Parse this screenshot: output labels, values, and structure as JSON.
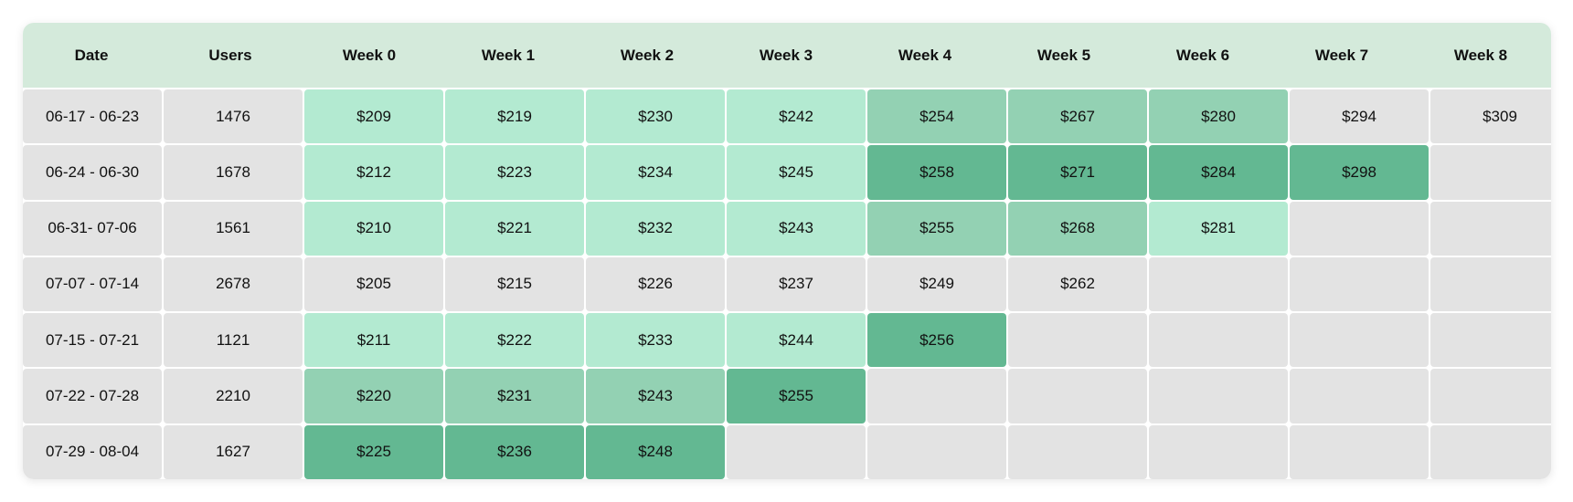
{
  "table": {
    "headers": [
      "Date",
      "Users",
      "Week 0",
      "Week 1",
      "Week 2",
      "Week 3",
      "Week 4",
      "Week 5",
      "Week 6",
      "Week 7",
      "Week 8"
    ],
    "rows": [
      {
        "date": "06-17 - 06-23",
        "users": "1476",
        "values": [
          "$209",
          "$219",
          "$230",
          "$242",
          "$254",
          "$267",
          "$280",
          "$294",
          "$309"
        ],
        "levels": [
          1,
          1,
          1,
          1,
          2,
          2,
          2,
          0,
          0
        ]
      },
      {
        "date": "06-24 - 06-30",
        "users": "1678",
        "values": [
          "$212",
          "$223",
          "$234",
          "$245",
          "$258",
          "$271",
          "$284",
          "$298",
          ""
        ],
        "levels": [
          1,
          1,
          1,
          1,
          3,
          3,
          3,
          3,
          0
        ]
      },
      {
        "date": "06-31- 07-06",
        "users": "1561",
        "values": [
          "$210",
          "$221",
          "$232",
          "$243",
          "$255",
          "$268",
          "$281",
          "",
          ""
        ],
        "levels": [
          1,
          1,
          1,
          1,
          2,
          2,
          1,
          0,
          0
        ]
      },
      {
        "date": "07-07 - 07-14",
        "users": "2678",
        "values": [
          "$205",
          "$215",
          "$226",
          "$237",
          "$249",
          "$262",
          "",
          "",
          ""
        ],
        "levels": [
          0,
          0,
          0,
          0,
          0,
          0,
          0,
          0,
          0
        ]
      },
      {
        "date": "07-15 - 07-21",
        "users": "1121",
        "values": [
          "$211",
          "$222",
          "$233",
          "$244",
          "$256",
          "",
          "",
          "",
          ""
        ],
        "levels": [
          1,
          1,
          1,
          1,
          3,
          0,
          0,
          0,
          0
        ]
      },
      {
        "date": "07-22 - 07-28",
        "users": "2210",
        "values": [
          "$220",
          "$231",
          "$243",
          "$255",
          "",
          "",
          "",
          "",
          ""
        ],
        "levels": [
          2,
          2,
          2,
          3,
          0,
          0,
          0,
          0,
          0
        ]
      },
      {
        "date": "07-29 - 08-04",
        "users": "1627",
        "values": [
          "$225",
          "$236",
          "$248",
          "",
          "",
          "",
          "",
          "",
          ""
        ],
        "levels": [
          3,
          3,
          3,
          0,
          0,
          0,
          0,
          0,
          0
        ]
      }
    ]
  },
  "colors": {
    "header_bg": "#d4eadb",
    "empty": "#e3e3e3",
    "level_1": "#b3ead1",
    "level_2": "#93d1b3",
    "level_3": "#63b892"
  }
}
